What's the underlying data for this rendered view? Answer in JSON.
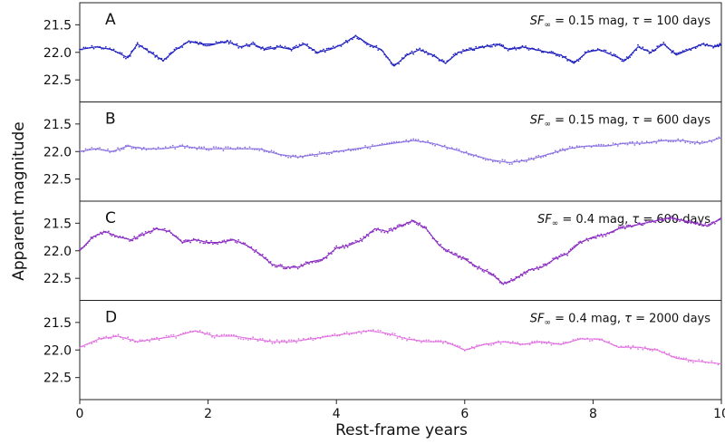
{
  "chart_data": {
    "type": "line",
    "xlabel": "Rest-frame years",
    "ylabel": "Apparent magnitude",
    "xlim": [
      0,
      10
    ],
    "x_ticks": [
      0,
      2,
      4,
      6,
      8,
      10
    ],
    "y_inverted": true,
    "grid": false,
    "panels": [
      {
        "label": "A",
        "annotation": {
          "sf_symbol": "SF",
          "sf_sub": "∞",
          "sf_value": "0.15 mag",
          "tau_symbol": "τ",
          "tau_value": "100 days"
        },
        "color": "#1f1fbf",
        "ylim": [
          21.1,
          22.9
        ],
        "y_ticks": [
          21.5,
          22.0,
          22.5
        ],
        "x": [
          0,
          0.25,
          0.5,
          0.75,
          0.9,
          1.1,
          1.3,
          1.5,
          1.7,
          1.9,
          2.1,
          2.3,
          2.5,
          2.7,
          2.9,
          3.1,
          3.3,
          3.5,
          3.7,
          3.9,
          4.1,
          4.3,
          4.5,
          4.7,
          4.9,
          5.1,
          5.3,
          5.5,
          5.7,
          5.9,
          6.1,
          6.3,
          6.5,
          6.7,
          6.9,
          7.1,
          7.3,
          7.5,
          7.7,
          7.9,
          8.1,
          8.3,
          8.5,
          8.7,
          8.9,
          9.1,
          9.3,
          9.5,
          9.7,
          9.9,
          10
        ],
        "y": [
          21.95,
          21.9,
          21.95,
          22.1,
          21.85,
          22.0,
          22.15,
          21.95,
          21.8,
          21.85,
          21.85,
          21.8,
          21.9,
          21.85,
          21.95,
          21.9,
          21.95,
          21.85,
          22.0,
          21.95,
          21.85,
          21.7,
          21.85,
          21.95,
          22.25,
          22.05,
          21.95,
          22.05,
          22.2,
          22.0,
          21.95,
          21.9,
          21.85,
          21.95,
          21.9,
          21.95,
          22.0,
          22.05,
          22.2,
          22.0,
          21.95,
          22.05,
          22.15,
          21.9,
          22.0,
          21.85,
          22.05,
          21.95,
          21.85,
          21.9,
          21.85
        ]
      },
      {
        "label": "B",
        "annotation": {
          "sf_symbol": "SF",
          "sf_sub": "∞",
          "sf_value": "0.15 mag",
          "tau_symbol": "τ",
          "tau_value": "600 days"
        },
        "color": "#8a6fe0",
        "ylim": [
          21.1,
          22.9
        ],
        "y_ticks": [
          21.5,
          22.0,
          22.5
        ],
        "x": [
          0,
          0.25,
          0.5,
          0.75,
          1.0,
          1.3,
          1.6,
          1.9,
          2.2,
          2.5,
          2.8,
          3.1,
          3.4,
          3.7,
          4.0,
          4.3,
          4.6,
          4.9,
          5.2,
          5.5,
          5.8,
          6.1,
          6.4,
          6.7,
          7.0,
          7.3,
          7.6,
          7.9,
          8.2,
          8.5,
          8.8,
          9.1,
          9.4,
          9.7,
          10
        ],
        "y": [
          22.0,
          21.95,
          22.0,
          21.9,
          21.95,
          21.95,
          21.9,
          21.95,
          21.95,
          21.95,
          21.95,
          22.05,
          22.1,
          22.05,
          22.0,
          21.95,
          21.9,
          21.85,
          21.8,
          21.85,
          21.95,
          22.05,
          22.15,
          22.2,
          22.15,
          22.05,
          21.95,
          21.9,
          21.9,
          21.85,
          21.85,
          21.8,
          21.8,
          21.85,
          21.75
        ]
      },
      {
        "label": "C",
        "annotation": {
          "sf_symbol": "SF",
          "sf_sub": "∞",
          "sf_value": "0.4 mag",
          "tau_symbol": "τ",
          "tau_value": "600 days"
        },
        "color": "#8a2bc2",
        "ylim": [
          21.1,
          22.9
        ],
        "y_ticks": [
          21.5,
          22.0,
          22.5
        ],
        "x": [
          0,
          0.2,
          0.4,
          0.6,
          0.8,
          1.0,
          1.2,
          1.4,
          1.6,
          1.8,
          2.0,
          2.2,
          2.4,
          2.6,
          2.8,
          3.0,
          3.2,
          3.4,
          3.6,
          3.8,
          4.0,
          4.2,
          4.4,
          4.6,
          4.8,
          5.0,
          5.2,
          5.4,
          5.6,
          5.8,
          6.0,
          6.2,
          6.4,
          6.6,
          6.8,
          7.0,
          7.2,
          7.4,
          7.6,
          7.8,
          8.0,
          8.2,
          8.4,
          8.6,
          8.8,
          9.0,
          9.2,
          9.4,
          9.6,
          9.8,
          10
        ],
        "y": [
          22.0,
          21.75,
          21.65,
          21.75,
          21.8,
          21.7,
          21.6,
          21.65,
          21.85,
          21.8,
          21.85,
          21.85,
          21.8,
          21.9,
          22.05,
          22.25,
          22.3,
          22.3,
          22.2,
          22.15,
          21.95,
          21.9,
          21.8,
          21.6,
          21.65,
          21.55,
          21.45,
          21.6,
          21.9,
          22.05,
          22.15,
          22.3,
          22.4,
          22.6,
          22.5,
          22.35,
          22.3,
          22.15,
          22.05,
          21.85,
          21.75,
          21.7,
          21.6,
          21.55,
          21.5,
          21.45,
          21.4,
          21.45,
          21.5,
          21.55,
          21.4
        ]
      },
      {
        "label": "D",
        "annotation": {
          "sf_symbol": "SF",
          "sf_sub": "∞",
          "sf_value": "0.4 mag",
          "tau_symbol": "τ",
          "tau_value": "2000 days"
        },
        "color": "#e070e0",
        "ylim": [
          21.1,
          22.9
        ],
        "y_ticks": [
          21.5,
          22.0,
          22.5
        ],
        "x": [
          0,
          0.3,
          0.6,
          0.9,
          1.2,
          1.5,
          1.8,
          2.1,
          2.4,
          2.7,
          3.0,
          3.3,
          3.6,
          3.9,
          4.2,
          4.5,
          4.8,
          5.1,
          5.4,
          5.7,
          6.0,
          6.3,
          6.6,
          6.9,
          7.2,
          7.5,
          7.8,
          8.1,
          8.4,
          8.7,
          9.0,
          9.3,
          9.6,
          10
        ],
        "y": [
          21.95,
          21.8,
          21.75,
          21.85,
          21.8,
          21.75,
          21.65,
          21.75,
          21.75,
          21.8,
          21.85,
          21.85,
          21.8,
          21.75,
          21.7,
          21.65,
          21.7,
          21.8,
          21.85,
          21.85,
          22.0,
          21.9,
          21.85,
          21.9,
          21.85,
          21.9,
          21.8,
          21.8,
          21.95,
          21.95,
          22.0,
          22.15,
          22.2,
          22.25
        ]
      }
    ]
  }
}
